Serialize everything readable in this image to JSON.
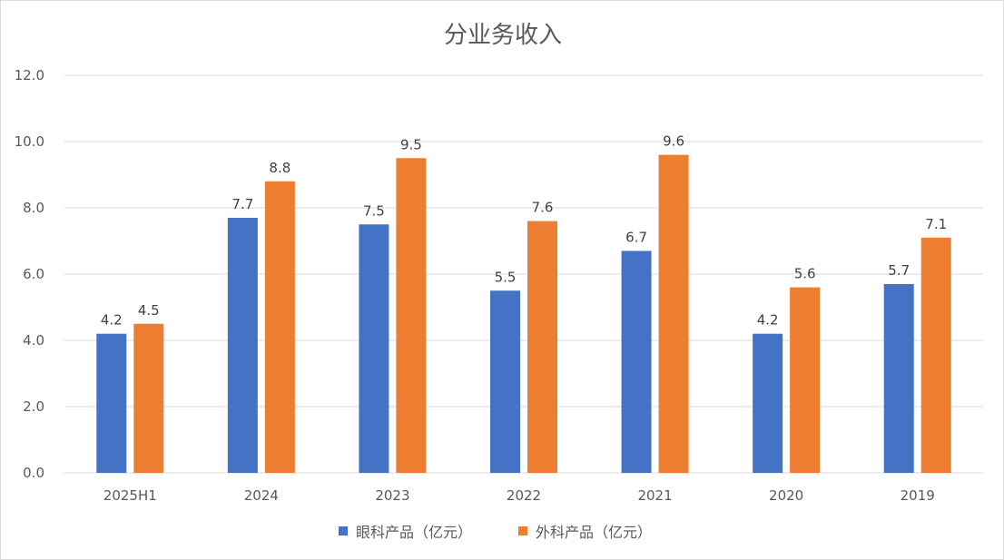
{
  "chart_data": {
    "type": "bar",
    "title": "分业务收入",
    "categories": [
      "2025H1",
      "2024",
      "2023",
      "2022",
      "2021",
      "2020",
      "2019"
    ],
    "series": [
      {
        "name": "眼科产品（亿元）",
        "color": "#4472C4",
        "values": [
          4.2,
          7.7,
          7.5,
          5.5,
          6.7,
          4.2,
          5.7
        ]
      },
      {
        "name": "外科产品（亿元）",
        "color": "#ED7D31",
        "values": [
          4.5,
          8.8,
          9.5,
          7.6,
          9.6,
          5.6,
          7.1
        ]
      }
    ],
    "ylim": [
      0,
      12
    ],
    "yticks": [
      "0.0",
      "2.0",
      "4.0",
      "6.0",
      "8.0",
      "10.0",
      "12.0"
    ],
    "grid": true,
    "legend_position": "bottom"
  }
}
